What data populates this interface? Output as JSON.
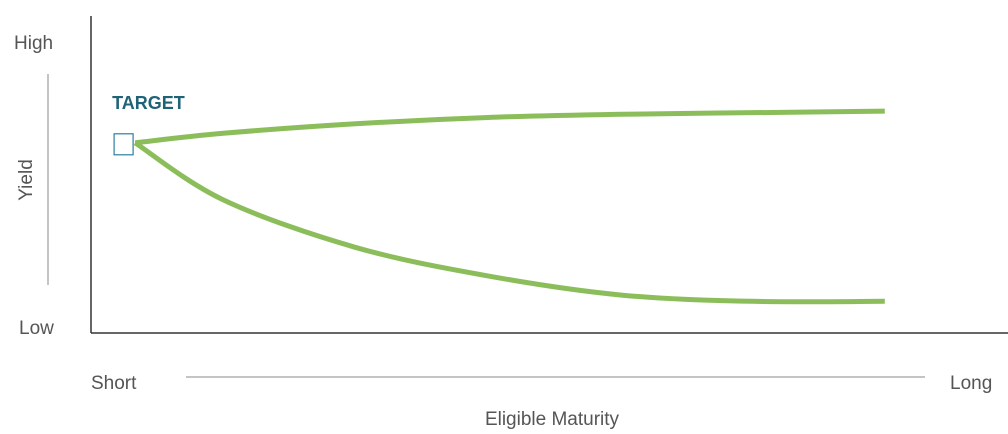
{
  "chart_data": {
    "type": "line",
    "title": "",
    "xlabel": "Eligible Maturity",
    "ylabel": "Yield",
    "x_tick_labels": {
      "start": "Short",
      "end": "Long"
    },
    "y_tick_labels": {
      "top": "High",
      "bottom": "Low"
    },
    "xlim": [
      0,
      1
    ],
    "ylim": [
      0,
      1
    ],
    "target": {
      "label": "TARGET",
      "x": 0.05,
      "y": 0.6
    },
    "series": [
      {
        "x": [
          0.05,
          0.15,
          0.3,
          0.45,
          0.6,
          0.75,
          0.9
        ],
        "values": [
          0.6,
          0.63,
          0.66,
          0.68,
          0.69,
          0.695,
          0.7
        ]
      },
      {
        "x": [
          0.05,
          0.15,
          0.3,
          0.45,
          0.6,
          0.75,
          0.9
        ],
        "values": [
          0.6,
          0.42,
          0.27,
          0.18,
          0.12,
          0.1,
          0.1
        ]
      }
    ],
    "colors": {
      "line": "#8bbe5b",
      "target_box": "#2a7fa3",
      "axis": "#333333",
      "guide": "#888888",
      "text": "#555555",
      "target_text": "#1f6377"
    },
    "grid": false,
    "legend": "none"
  }
}
